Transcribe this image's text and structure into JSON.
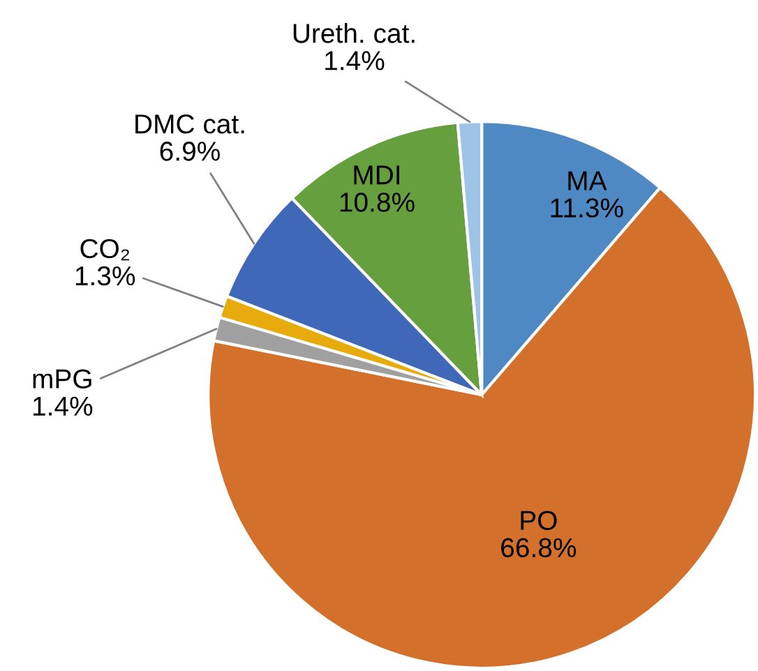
{
  "chart_data": {
    "type": "pie",
    "categories": [
      "MA",
      "PO",
      "mPG",
      "CO₂",
      "DMC cat.",
      "MDI",
      "Ureth. cat."
    ],
    "values": [
      11.3,
      66.8,
      1.4,
      1.3,
      6.9,
      10.8,
      1.4
    ],
    "value_labels": [
      "11.3%",
      "66.8%",
      "1.4%",
      "1.3%",
      "6.9%",
      "10.8%",
      "1.4%"
    ],
    "colors": [
      "#4f89c4",
      "#d2702c",
      "#a0a0a0",
      "#e8ab0e",
      "#4068b8",
      "#66a03e",
      "#9dc3e6"
    ],
    "legend": false
  }
}
